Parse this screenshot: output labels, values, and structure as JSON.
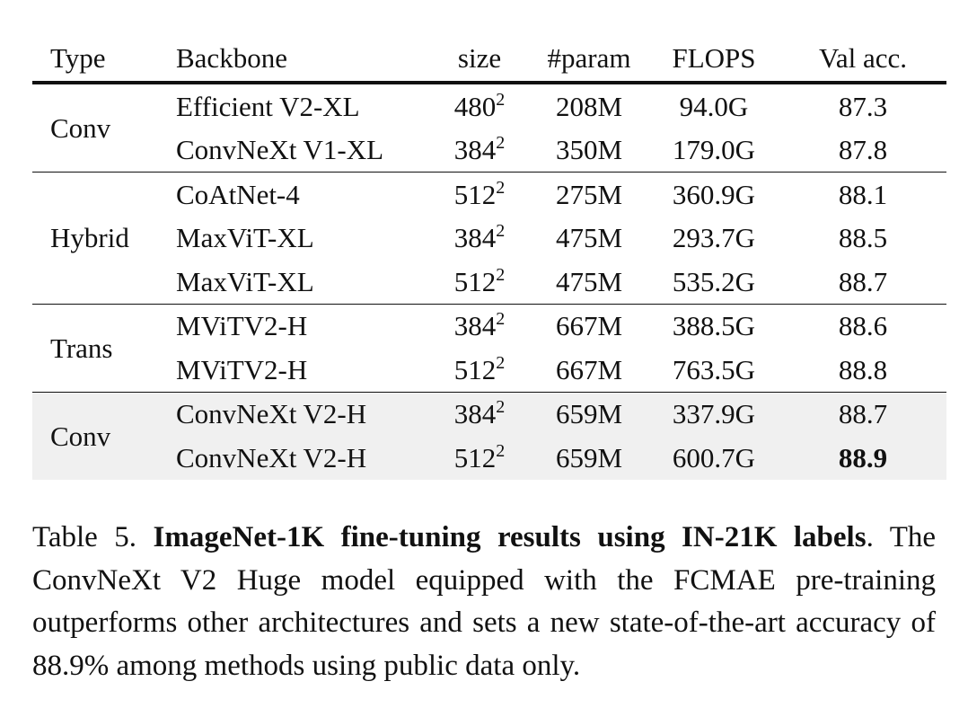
{
  "table": {
    "headers": {
      "type": "Type",
      "backbone": "Backbone",
      "size": "size",
      "param": "#param",
      "flops": "FLOPS",
      "val": "Val acc."
    },
    "groups": [
      {
        "type": "Conv",
        "rows": [
          {
            "backbone": "Efficient V2-XL",
            "size_base": "480",
            "size_exp": "2",
            "param": "208M",
            "flops": "94.0G",
            "val": "87.3"
          },
          {
            "backbone": "ConvNeXt V1-XL",
            "size_base": "384",
            "size_exp": "2",
            "param": "350M",
            "flops": "179.0G",
            "val": "87.8"
          }
        ]
      },
      {
        "type": "Hybrid",
        "rows": [
          {
            "backbone": "CoAtNet-4",
            "size_base": "512",
            "size_exp": "2",
            "param": "275M",
            "flops": "360.9G",
            "val": "88.1"
          },
          {
            "backbone": "MaxViT-XL",
            "size_base": "384",
            "size_exp": "2",
            "param": "475M",
            "flops": "293.7G",
            "val": "88.5"
          },
          {
            "backbone": "MaxViT-XL",
            "size_base": "512",
            "size_exp": "2",
            "param": "475M",
            "flops": "535.2G",
            "val": "88.7"
          }
        ]
      },
      {
        "type": "Trans",
        "rows": [
          {
            "backbone": "MViTV2-H",
            "size_base": "384",
            "size_exp": "2",
            "param": "667M",
            "flops": "388.5G",
            "val": "88.6"
          },
          {
            "backbone": "MViTV2-H",
            "size_base": "512",
            "size_exp": "2",
            "param": "667M",
            "flops": "763.5G",
            "val": "88.8"
          }
        ]
      },
      {
        "type": "Conv",
        "rows": [
          {
            "backbone": "ConvNeXt V2-H",
            "size_base": "384",
            "size_exp": "2",
            "param": "659M",
            "flops": "337.9G",
            "val": "88.7"
          },
          {
            "backbone": "ConvNeXt V2-H",
            "size_base": "512",
            "size_exp": "2",
            "param": "659M",
            "flops": "600.7G",
            "val": "88.9"
          }
        ]
      }
    ]
  },
  "caption": {
    "label": "Table 5.",
    "bold_title": "ImageNet-1K fine-tuning results using IN-21K labels",
    "title_punct": ".",
    "body": "The ConvNeXt V2 Huge model equipped with the FCMAE pre-training outperforms other architectures and sets a new state-of-the-art accuracy of 88.9% among methods using public data only."
  },
  "colors": {
    "text": "#111111",
    "highlight_background": "#f0f0f0"
  }
}
